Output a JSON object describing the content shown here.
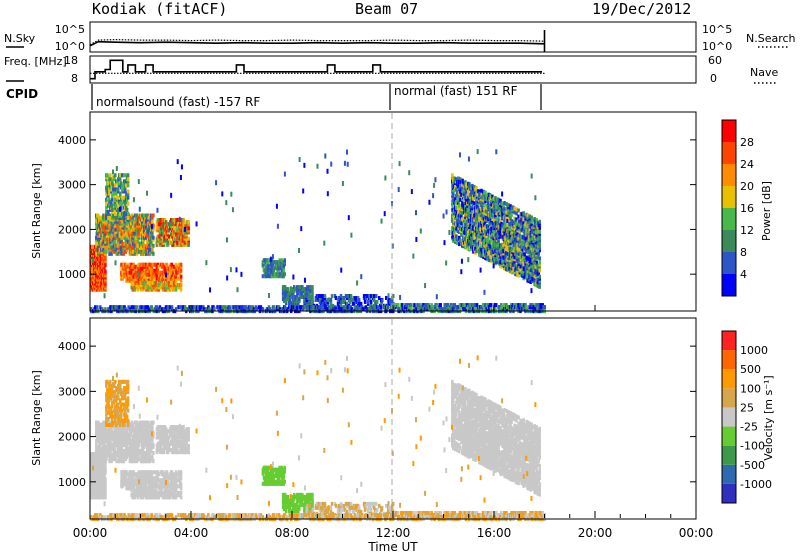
{
  "header": {
    "station": "Kodiak (fitACF)",
    "beam": "Beam 07",
    "date": "19/Dec/2012"
  },
  "colors": {
    "power_scale": [
      "#0000ff",
      "#2b55c8",
      "#3a8a5a",
      "#49b84a",
      "#e8c000",
      "#ff8c00",
      "#ff4500",
      "#ff0000"
    ],
    "velocity_scale": [
      "#3030c0",
      "#2d6ab0",
      "#3c9a4a",
      "#66cc33",
      "#c8c8c8",
      "#d7a64a",
      "#ff9900",
      "#ff6600",
      "#ff2222"
    ],
    "black": "#000000"
  },
  "chart_data": [
    {
      "type": "line",
      "name": "N.Sky / N.Search strip",
      "left_label": "N.Sky",
      "right_label": "N.Search",
      "left_ticks": [
        "10^5",
        "10^0"
      ],
      "right_ticks": [
        "10^5",
        "10^0"
      ],
      "x": [
        "00:00",
        "00:20",
        "01:00",
        "02:00",
        "03:00",
        "04:00",
        "05:00",
        "06:00",
        "07:00",
        "08:00",
        "09:00",
        "10:00",
        "11:00",
        "12:00",
        "13:00",
        "14:00",
        "15:00",
        "16:00",
        "17:00",
        "18:00"
      ],
      "series": [
        {
          "name": "N.Sky",
          "style": "solid",
          "values": [
            0.8,
            1.6,
            1.5,
            1.4,
            1.5,
            1.4,
            1.3,
            1.4,
            1.3,
            1.3,
            1.4,
            1.3,
            1.4,
            1.3,
            1.3,
            1.4,
            1.3,
            1.3,
            1.3,
            1.2
          ]
        },
        {
          "name": "N.Search",
          "style": "dotted",
          "values": [
            1.0,
            1.9,
            2.0,
            1.9,
            1.9,
            1.8,
            1.9,
            1.8,
            1.8,
            1.9,
            1.8,
            1.8,
            1.8,
            1.9,
            1.8,
            1.8,
            1.9,
            1.8,
            1.8,
            1.7
          ]
        }
      ]
    },
    {
      "type": "line",
      "name": "Freq / Nave strip",
      "left_label": "Freq. [MHz]",
      "right_label": "Nave",
      "left_ticks": [
        "18",
        "8"
      ],
      "right_ticks": [
        "60",
        "0"
      ],
      "series": [
        {
          "name": "Freq",
          "style": "solid",
          "points": [
            [
              0.0,
              9
            ],
            [
              0.2,
              9
            ],
            [
              0.2,
              12
            ],
            [
              0.6,
              12
            ],
            [
              0.6,
              13
            ],
            [
              0.8,
              13
            ],
            [
              0.8,
              17
            ],
            [
              1.3,
              17
            ],
            [
              1.3,
              12
            ],
            [
              1.5,
              12
            ],
            [
              1.5,
              15
            ],
            [
              1.8,
              15
            ],
            [
              1.8,
              12
            ],
            [
              2.2,
              12
            ],
            [
              2.2,
              15
            ],
            [
              2.5,
              15
            ],
            [
              2.5,
              12
            ],
            [
              5.8,
              12
            ],
            [
              5.8,
              15
            ],
            [
              6.1,
              15
            ],
            [
              6.1,
              12
            ],
            [
              9.4,
              12
            ],
            [
              9.4,
              15
            ],
            [
              9.7,
              15
            ],
            [
              9.7,
              12
            ],
            [
              11.2,
              12
            ],
            [
              11.2,
              15
            ],
            [
              11.5,
              15
            ],
            [
              11.5,
              12
            ],
            [
              17.9,
              12
            ]
          ]
        },
        {
          "name": "Nave",
          "style": "dotted",
          "values": [
            20,
            20,
            20,
            20,
            20,
            20,
            20,
            20,
            20,
            20,
            20,
            20,
            20,
            20,
            20,
            20,
            20,
            20,
            20,
            20
          ]
        }
      ]
    },
    {
      "type": "table",
      "name": "CPID",
      "label": "CPID",
      "segments": [
        {
          "start": "00:00",
          "end": "12:00",
          "text": "normalsound (fast) -157 RF"
        },
        {
          "start": "12:00",
          "end": "18:00",
          "text": "normal (fast) 151 RF"
        }
      ]
    },
    {
      "type": "heatmap",
      "name": "Power",
      "ylabel": "Slant Range [km]",
      "yticks": [
        1000,
        2000,
        3000,
        4000
      ],
      "ylim": [
        200,
        4600
      ],
      "xlim": [
        "00:00",
        "00:00"
      ],
      "colorbar_label": "Power [dB]",
      "colorbar_ticks": [
        4,
        8,
        12,
        16,
        20,
        24,
        28
      ],
      "colorbar_range": [
        0,
        32
      ]
    },
    {
      "type": "heatmap",
      "name": "Velocity",
      "ylabel": "Slant Range [km]",
      "yticks": [
        1000,
        2000,
        3000,
        4000
      ],
      "ylim": [
        200,
        4600
      ],
      "xlabel": "Time UT",
      "xticks": [
        "00:00",
        "04:00",
        "08:00",
        "12:00",
        "16:00",
        "20:00",
        "00:00"
      ],
      "colorbar_label": "Velocity [m s⁻¹]",
      "colorbar_ticks": [
        1000,
        500,
        100,
        25,
        -25,
        -100,
        -500,
        -1000
      ]
    }
  ]
}
